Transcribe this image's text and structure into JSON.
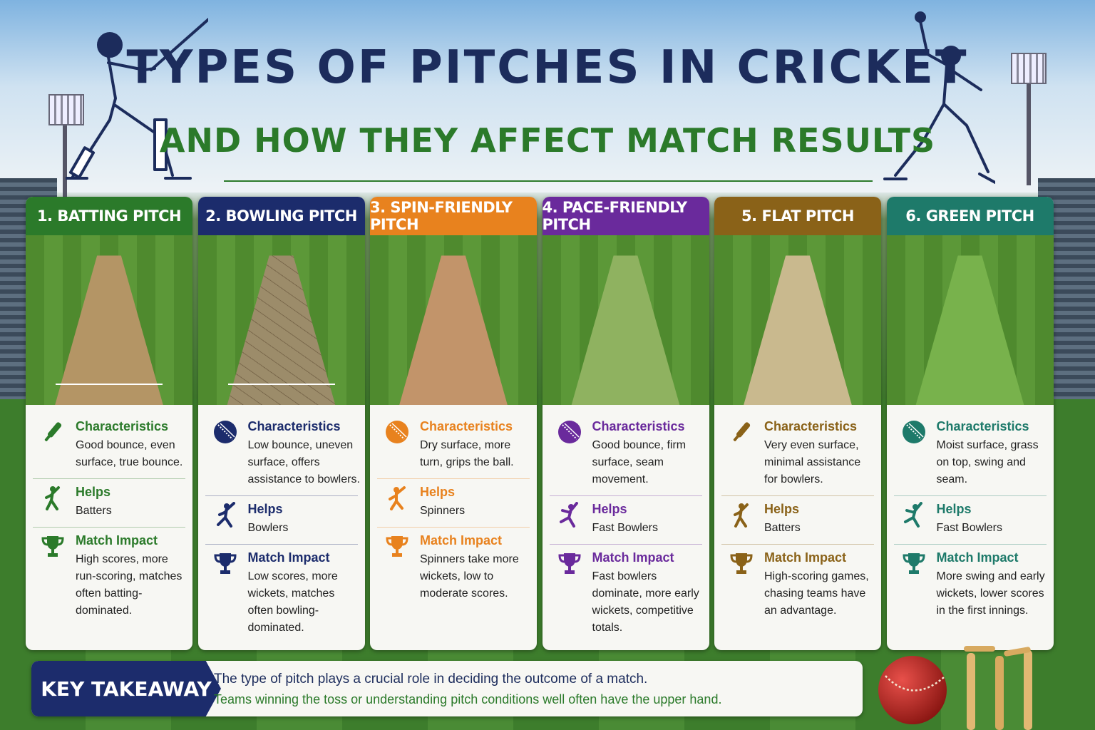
{
  "title": "TYPES OF PITCHES IN CRICKET",
  "subtitle": "AND HOW THEY AFFECT MATCH RESULTS",
  "cards": [
    {
      "heading": "1. BATTING PITCH",
      "color": "#2b7a2a",
      "characteristics": {
        "label": "Characteristics",
        "text": "Good bounce, even surface, true bounce.",
        "icon": "bat-icon"
      },
      "helps": {
        "label": "Helps",
        "text": "Batters",
        "icon": "batter-icon"
      },
      "impact": {
        "label": "Match Impact",
        "text": "High scores, more run-scoring, matches often batting-dominated.",
        "icon": "trophy-icon"
      }
    },
    {
      "heading": "2. BOWLING PITCH",
      "color": "#1c2c6c",
      "characteristics": {
        "label": "Characteristics",
        "text": "Low bounce, uneven surface, offers assistance to bowlers.",
        "icon": "ball-icon"
      },
      "helps": {
        "label": "Helps",
        "text": "Bowlers",
        "icon": "bowler-icon"
      },
      "impact": {
        "label": "Match Impact",
        "text": "Low scores, more wickets, matches often bowling-dominated.",
        "icon": "trophy-icon"
      }
    },
    {
      "heading": "3. SPIN-FRIENDLY PITCH",
      "color": "#e8821e",
      "characteristics": {
        "label": "Characteristics",
        "text": "Dry surface, more turn, grips the ball.",
        "icon": "ball-icon"
      },
      "helps": {
        "label": "Helps",
        "text": "Spinners",
        "icon": "spinner-icon"
      },
      "impact": {
        "label": "Match Impact",
        "text": "Spinners take more wickets, low to moderate scores.",
        "icon": "trophy-icon"
      }
    },
    {
      "heading": "4. PACE-FRIENDLY PITCH",
      "color": "#6a2a9c",
      "characteristics": {
        "label": "Characteristics",
        "text": "Good bounce, firm surface, seam movement.",
        "icon": "ball-icon"
      },
      "helps": {
        "label": "Helps",
        "text": "Fast Bowlers",
        "icon": "fast-bowler-icon"
      },
      "impact": {
        "label": "Match Impact",
        "text": "Fast bowlers dominate, more early wickets, competitive totals.",
        "icon": "trophy-icon"
      }
    },
    {
      "heading": "5. FLAT PITCH",
      "color": "#8a6218",
      "characteristics": {
        "label": "Characteristics",
        "text": "Very even surface, minimal assistance for bowlers.",
        "icon": "bat-icon"
      },
      "helps": {
        "label": "Helps",
        "text": "Batters",
        "icon": "batter-icon"
      },
      "impact": {
        "label": "Match Impact",
        "text": "High-scoring games, chasing teams have an advantage.",
        "icon": "trophy-icon"
      }
    },
    {
      "heading": "6. GREEN PITCH",
      "color": "#1e7a6a",
      "characteristics": {
        "label": "Characteristics",
        "text": "Moist surface, grass on top, swing and seam.",
        "icon": "ball-icon"
      },
      "helps": {
        "label": "Helps",
        "text": "Fast Bowlers",
        "icon": "fast-bowler-icon"
      },
      "impact": {
        "label": "Match Impact",
        "text": "More swing and early wickets, lower scores in the first innings.",
        "icon": "trophy-icon"
      }
    }
  ],
  "takeaway": {
    "label": "KEY TAKEAWAY",
    "line1": "The type of pitch plays a crucial role in deciding the outcome of a match.",
    "line2": "Teams winning the toss or understanding pitch conditions well often have the upper hand."
  }
}
